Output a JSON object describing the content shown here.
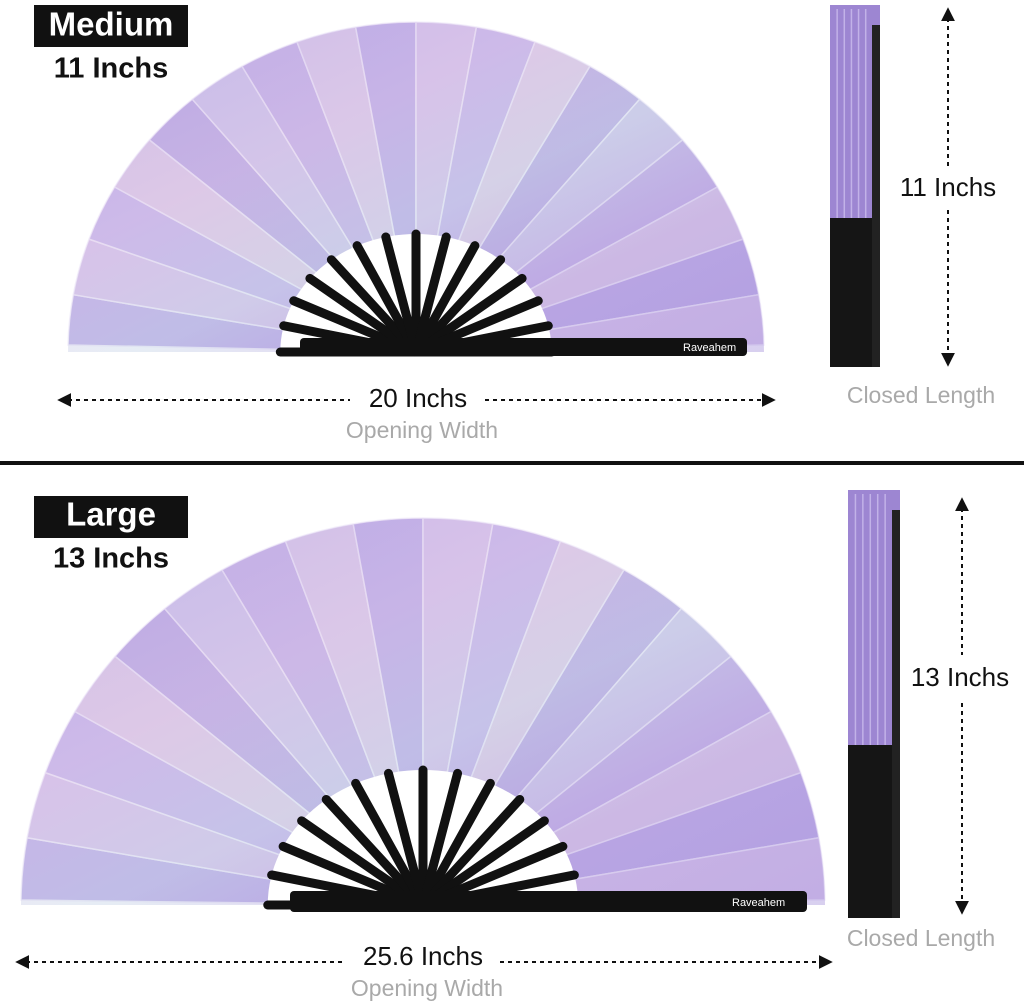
{
  "sections": [
    {
      "label": "Medium",
      "size": "11 Inchs",
      "brand": "Raveahem",
      "width": "20 Inchs",
      "width_caption": "Opening Width",
      "length": "11 Inchs",
      "length_caption": "Closed Length"
    },
    {
      "label": "Large",
      "size": "13 Inchs",
      "brand": "Raveahem",
      "width": "25.6 Inchs",
      "width_caption": "Opening Width",
      "length": "13 Inchs",
      "length_caption": "Closed Length"
    }
  ]
}
